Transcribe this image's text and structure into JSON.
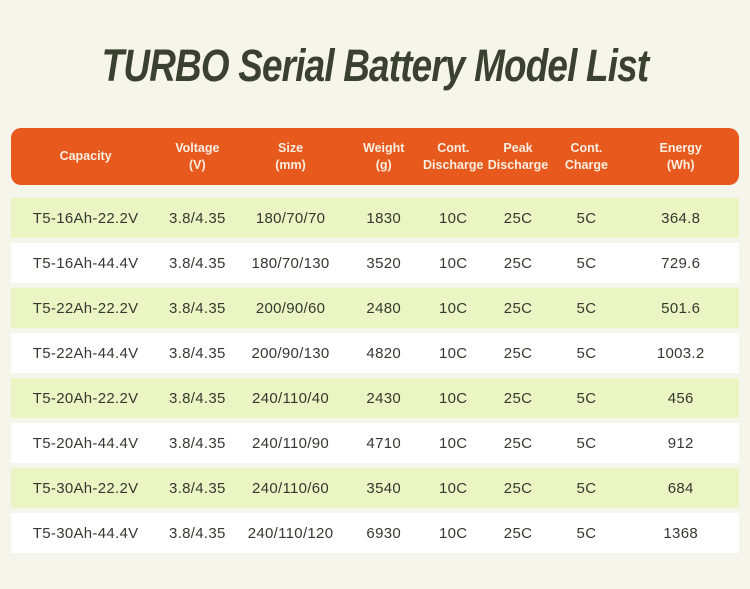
{
  "page": {
    "title": "TURBO Serial Battery Model List"
  },
  "colors": {
    "background": "#F6F5EC",
    "header_bg": "#E8591E",
    "header_text": "#F9EFE2",
    "row_bg": "#FFFFFF",
    "row_alt_bg": "#EBF5C3",
    "title_text": "#3A4130",
    "cell_text": "#333A30"
  },
  "table": {
    "columns": [
      "Capacity",
      "Voltage\n(V)",
      "Size\n(mm)",
      "Weight\n(g)",
      "Cont.\nDischarge",
      "Peak\nDischarge",
      "Cont.\nCharge",
      "Energy\n(Wh)"
    ],
    "rows": [
      {
        "cells": [
          "T5-16Ah-22.2V",
          "3.8/4.35",
          "180/70/70",
          "1830",
          "10C",
          "25C",
          "5C",
          "364.8"
        ]
      },
      {
        "cells": [
          "T5-16Ah-44.4V",
          "3.8/4.35",
          "180/70/130",
          "3520",
          "10C",
          "25C",
          "5C",
          "729.6"
        ]
      },
      {
        "cells": [
          "T5-22Ah-22.2V",
          "3.8/4.35",
          "200/90/60",
          "2480",
          "10C",
          "25C",
          "5C",
          "501.6"
        ]
      },
      {
        "cells": [
          "T5-22Ah-44.4V",
          "3.8/4.35",
          "200/90/130",
          "4820",
          "10C",
          "25C",
          "5C",
          "1003.2"
        ]
      },
      {
        "cells": [
          "T5-20Ah-22.2V",
          "3.8/4.35",
          "240/110/40",
          "2430",
          "10C",
          "25C",
          "5C",
          "456"
        ]
      },
      {
        "cells": [
          "T5-20Ah-44.4V",
          "3.8/4.35",
          "240/110/90",
          "4710",
          "10C",
          "25C",
          "5C",
          "912"
        ]
      },
      {
        "cells": [
          "T5-30Ah-22.2V",
          "3.8/4.35",
          "240/110/60",
          "3540",
          "10C",
          "25C",
          "5C",
          "684"
        ]
      },
      {
        "cells": [
          "T5-30Ah-44.4V",
          "3.8/4.35",
          "240/110/120",
          "6930",
          "10C",
          "25C",
          "5C",
          "1368"
        ]
      }
    ]
  }
}
